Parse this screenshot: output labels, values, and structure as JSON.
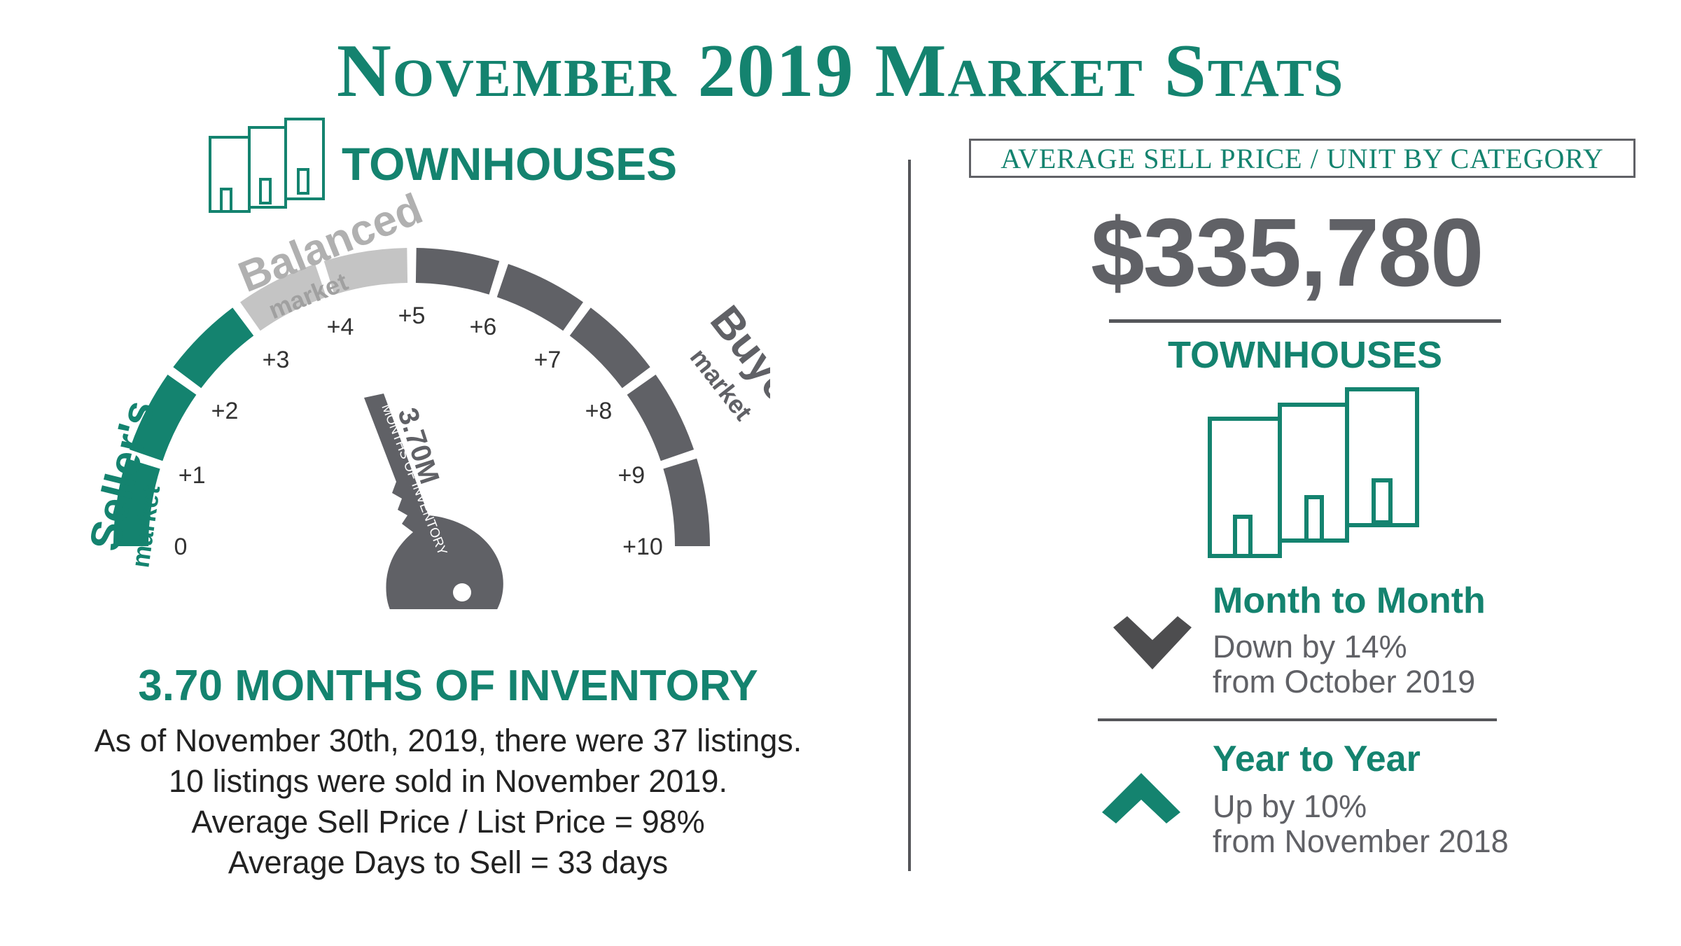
{
  "title": "November 2019 Market Stats",
  "left": {
    "category": "TOWNHOUSES",
    "gauge": {
      "zones": {
        "seller": "Seller's",
        "seller_sub": "market",
        "balanced": "Balanced",
        "balanced_sub": "market",
        "buyer": "Buyer's",
        "buyer_sub": "market"
      },
      "ticks": [
        "0",
        "+1",
        "+2",
        "+3",
        "+4",
        "+5",
        "+6",
        "+7",
        "+8",
        "+9",
        "+10"
      ],
      "range": [
        0,
        10
      ],
      "value": 3.7,
      "key_value": "3.70M",
      "key_label": "MONTHS OF INVENTORY",
      "colors": {
        "seller": "#14836f",
        "balanced": "#c4c4c4",
        "buyer": "#606166"
      }
    },
    "inventory_heading": "3.70 MONTHS OF INVENTORY",
    "lines": [
      "As of November 30th, 2019, there were 37 listings.",
      "10 listings were sold in November 2019.",
      "Average Sell Price / List Price = 98%",
      "Average Days to Sell = 33 days"
    ]
  },
  "right": {
    "heading": "AVERAGE SELL PRICE / UNIT BY CATEGORY",
    "price": "$335,780",
    "category": "TOWNHOUSES",
    "month": {
      "title": "Month to Month",
      "line1": "Down by 14%",
      "line2": "from October 2019",
      "icon": "chevron-down-icon"
    },
    "year": {
      "title": "Year to Year",
      "line1": "Up by 10%",
      "line2": "from November 2018",
      "icon": "chevron-up-icon"
    }
  },
  "colors": {
    "accent": "#14836f",
    "grey": "#606166",
    "light_grey": "#c4c4c4"
  }
}
